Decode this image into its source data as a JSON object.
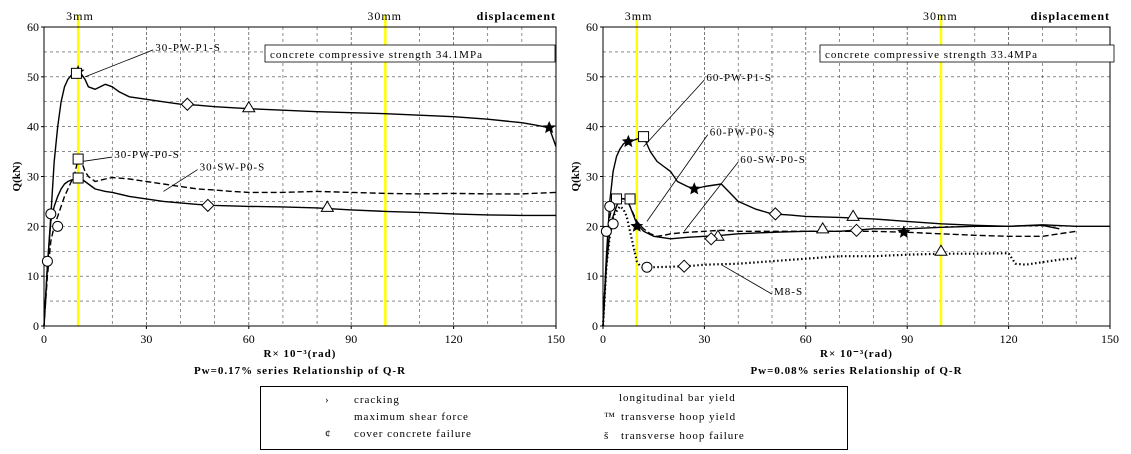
{
  "chart_data": [
    {
      "type": "line",
      "xlabel": "R× 10⁻³(rad)",
      "ylabel": "Q(kN)",
      "xlim": [
        0,
        150
      ],
      "ylim": [
        0,
        60
      ],
      "xticks": [
        "0",
        "30",
        "60",
        "90",
        "120",
        "150"
      ],
      "yticks": [
        "0",
        "10",
        "20",
        "30",
        "40",
        "50",
        "60"
      ],
      "grid": true,
      "top_labels": [
        "3mm",
        "30mm",
        "displacement"
      ],
      "yellow_lines_x": [
        10,
        100
      ],
      "annotation": "concrete compressive strength 34.1MPa",
      "caption": "Pw=0.17% series Relationship of Q-R",
      "series": [
        {
          "name": "30-PW-P1-S",
          "style": "solid",
          "x": [
            0,
            1,
            2,
            3,
            4,
            5,
            6,
            7,
            8,
            9,
            10,
            11,
            12,
            13,
            15,
            18,
            20,
            22,
            25,
            30,
            35,
            40,
            45,
            50,
            55,
            60,
            70,
            80,
            90,
            100,
            110,
            120,
            130,
            140,
            145,
            148,
            150
          ],
          "y": [
            0,
            12,
            22,
            33,
            40,
            45,
            48,
            49.5,
            50.3,
            50.7,
            51,
            50.5,
            49.5,
            48,
            47.5,
            48.5,
            48,
            47,
            46,
            45.5,
            45,
            44.5,
            44.3,
            44,
            43.8,
            43.6,
            43.3,
            43,
            42.8,
            42.6,
            42.3,
            42,
            41.5,
            40.8,
            40.2,
            39.8,
            36
          ]
        },
        {
          "name": "30-PW-P0-S",
          "style": "dashed",
          "x": [
            0,
            1,
            2,
            3,
            4,
            5,
            6,
            7,
            8,
            9,
            10,
            11,
            12,
            13,
            14,
            15,
            18,
            20,
            25,
            30,
            35,
            40,
            45,
            50,
            55,
            60,
            70,
            80,
            90,
            100,
            110,
            120,
            130,
            140,
            150
          ],
          "y": [
            0,
            10,
            17,
            20,
            22,
            24,
            26,
            27.5,
            29,
            30.5,
            33.5,
            33,
            31,
            30,
            29.5,
            29,
            29.5,
            29.8,
            29.5,
            29,
            28.5,
            28,
            27.5,
            27.3,
            27,
            26.8,
            26.8,
            27,
            26.8,
            26.6,
            26.5,
            26.6,
            26.5,
            26.5,
            26.8
          ]
        },
        {
          "name": "30-SW-P0-S",
          "style": "solid",
          "x": [
            0,
            1,
            2,
            3,
            4,
            5,
            6,
            7,
            8,
            9,
            10,
            11,
            12,
            13,
            15,
            18,
            20,
            25,
            30,
            35,
            40,
            45,
            50,
            55,
            60,
            70,
            80,
            90,
            100,
            110,
            120,
            130,
            140,
            150
          ],
          "y": [
            0,
            12,
            21,
            24,
            26,
            27.5,
            28.5,
            29,
            29.3,
            29.5,
            29.7,
            29.5,
            29,
            28.5,
            27.5,
            27,
            26.8,
            26,
            25.5,
            25,
            24.7,
            24.4,
            24.2,
            24.1,
            24,
            23.9,
            23.7,
            23.3,
            23,
            22.8,
            22.5,
            22.3,
            22.2,
            22.2
          ]
        }
      ],
      "markers": [
        {
          "series": "30-PW-P1-S",
          "symbol": "star",
          "x": 10,
          "y": 51
        },
        {
          "series": "30-PW-P1-S",
          "symbol": "square",
          "x": 9.5,
          "y": 50.7
        },
        {
          "series": "30-PW-P1-S",
          "symbol": "diamond",
          "x": 42,
          "y": 44.5
        },
        {
          "series": "30-PW-P1-S",
          "symbol": "triangle",
          "x": 60,
          "y": 43.8
        },
        {
          "series": "30-PW-P1-S",
          "symbol": "star",
          "x": 148,
          "y": 39.8
        },
        {
          "series": "30-PW-P0-S",
          "symbol": "square",
          "x": 10,
          "y": 33.5
        },
        {
          "series": "30-SW-P0-S",
          "symbol": "circle",
          "x": 1,
          "y": 13
        },
        {
          "series": "30-SW-P0-S",
          "symbol": "circle",
          "x": 2,
          "y": 22.5
        },
        {
          "series": "30-SW-P0-S",
          "symbol": "circle",
          "x": 4,
          "y": 20
        },
        {
          "series": "30-SW-P0-S",
          "symbol": "square",
          "x": 10,
          "y": 29.7
        },
        {
          "series": "30-SW-P0-S",
          "symbol": "diamond",
          "x": 48,
          "y": 24.2
        },
        {
          "series": "30-SW-P0-S",
          "symbol": "triangle",
          "x": 83,
          "y": 23.8
        }
      ],
      "callouts": [
        {
          "text": "30-PW-P1-S",
          "at_x": 12,
          "at_y": 50,
          "tx": 32,
          "ty": 56
        },
        {
          "text": "30-PW-P0-S",
          "at_x": 11,
          "at_y": 33,
          "tx": 20,
          "ty": 34.5
        },
        {
          "text": "30-SW-P0-S",
          "at_x": 35,
          "at_y": 27,
          "tx": 45,
          "ty": 32
        }
      ]
    },
    {
      "type": "line",
      "xlabel": "R× 10⁻³(rad)",
      "ylabel": "Q(kN)",
      "xlim": [
        0,
        150
      ],
      "ylim": [
        0,
        60
      ],
      "xticks": [
        "0",
        "30",
        "60",
        "90",
        "120",
        "150"
      ],
      "yticks": [
        "0",
        "10",
        "20",
        "30",
        "40",
        "50",
        "60"
      ],
      "grid": true,
      "top_labels": [
        "3mm",
        "30mm",
        "displacement"
      ],
      "yellow_lines_x": [
        10,
        100
      ],
      "annotation": "concrete compressive strength 33.4MPa",
      "caption": "Pw=0.08% series Relationship of Q-R",
      "series": [
        {
          "name": "60-PW-P1-S",
          "style": "solid",
          "x": [
            0,
            1,
            2,
            3,
            4,
            5,
            6,
            7,
            8,
            10,
            12,
            14,
            16,
            18,
            20,
            22,
            25,
            27,
            30,
            35,
            40,
            45,
            50,
            55,
            60,
            70,
            80,
            90,
            100,
            110,
            120,
            130,
            140,
            150
          ],
          "y": [
            0,
            14,
            25,
            31,
            34,
            35.5,
            36.5,
            37,
            37,
            37.5,
            38,
            35,
            33,
            32,
            31,
            29,
            28,
            27.5,
            28,
            28.5,
            25,
            23.5,
            22.5,
            22.3,
            22,
            21.8,
            21.5,
            21,
            20.5,
            20.2,
            20,
            20.3,
            20,
            20
          ]
        },
        {
          "name": "60-PW-P0-S",
          "style": "dashed",
          "x": [
            0,
            1,
            2,
            3,
            4,
            5,
            6,
            7,
            8,
            10,
            12,
            14,
            16,
            18,
            20,
            25,
            30,
            35,
            40,
            50,
            60,
            70,
            80,
            90,
            100,
            110,
            120,
            130,
            140
          ],
          "y": [
            0,
            13,
            22,
            24.5,
            25.5,
            25.8,
            25.5,
            25.5,
            24,
            21,
            19.5,
            18.5,
            18,
            18.2,
            18.5,
            18.8,
            19,
            19.2,
            19,
            19,
            19,
            19,
            19,
            18.8,
            18.5,
            18.2,
            18,
            18,
            19
          ]
        },
        {
          "name": "60-SW-P0-S",
          "style": "solid",
          "x": [
            0,
            1,
            2,
            3,
            4,
            5,
            6,
            7,
            8,
            10,
            12,
            15,
            20,
            25,
            30,
            35,
            40,
            50,
            60,
            70,
            80,
            90,
            100,
            110,
            120,
            130,
            135
          ],
          "y": [
            0,
            12,
            19,
            22,
            24,
            25.5,
            25.5,
            25.5,
            24,
            20.5,
            19,
            18,
            17.5,
            17.8,
            18,
            18.2,
            18.5,
            18.8,
            19,
            19,
            19.5,
            19.5,
            19.8,
            20,
            20,
            20.2,
            19.5
          ]
        },
        {
          "name": "M8-S",
          "style": "dotted",
          "x": [
            0,
            1,
            2,
            3,
            4,
            5,
            6,
            7,
            8,
            9,
            10,
            11,
            12,
            13,
            15,
            20,
            25,
            30,
            40,
            50,
            60,
            70,
            80,
            90,
            100,
            110,
            120,
            122,
            125,
            130,
            135,
            140
          ],
          "y": [
            0,
            12,
            18,
            22,
            23,
            24,
            23.5,
            22,
            19,
            16,
            13,
            12,
            11.8,
            11.7,
            11.8,
            11.9,
            12,
            12.3,
            12.5,
            13,
            13.5,
            14,
            14,
            14.3,
            14.5,
            14.5,
            14.6,
            12.5,
            12.3,
            12.8,
            13.3,
            13.6
          ]
        }
      ],
      "markers": [
        {
          "series": "60-PW-P1-S",
          "symbol": "star",
          "x": 7.5,
          "y": 37
        },
        {
          "series": "60-PW-P1-S",
          "symbol": "square",
          "x": 12,
          "y": 38
        },
        {
          "series": "60-PW-P1-S",
          "symbol": "star",
          "x": 27,
          "y": 27.5
        },
        {
          "series": "60-PW-P1-S",
          "symbol": "diamond",
          "x": 51,
          "y": 22.5
        },
        {
          "series": "60-PW-P1-S",
          "symbol": "triangle",
          "x": 74,
          "y": 22
        },
        {
          "series": "60-PW-P0-S",
          "symbol": "square",
          "x": 4,
          "y": 25.5
        },
        {
          "series": "60-PW-P0-S",
          "symbol": "square",
          "x": 8,
          "y": 25.5
        },
        {
          "series": "60-PW-P0-S",
          "symbol": "star",
          "x": 10,
          "y": 20
        },
        {
          "series": "60-PW-P0-S",
          "symbol": "triangle",
          "x": 34,
          "y": 18
        },
        {
          "series": "60-PW-P0-S",
          "symbol": "triangle",
          "x": 65,
          "y": 19.5
        },
        {
          "series": "60-PW-P0-S",
          "symbol": "star",
          "x": 89,
          "y": 18.8
        },
        {
          "series": "60-SW-P0-S",
          "symbol": "circle",
          "x": 1,
          "y": 19
        },
        {
          "series": "60-SW-P0-S",
          "symbol": "diamond",
          "x": 32,
          "y": 17.5
        },
        {
          "series": "60-SW-P0-S",
          "symbol": "diamond",
          "x": 75,
          "y": 19.2
        },
        {
          "series": "60-SW-P0-S",
          "symbol": "triangle",
          "x": 100,
          "y": 15
        },
        {
          "series": "M8-S",
          "symbol": "circle",
          "x": 2,
          "y": 24
        },
        {
          "series": "M8-S",
          "symbol": "circle",
          "x": 3,
          "y": 20.5
        },
        {
          "series": "M8-S",
          "symbol": "circle",
          "x": 13,
          "y": 11.8
        },
        {
          "series": "M8-S",
          "symbol": "diamond",
          "x": 24,
          "y": 12
        }
      ],
      "callouts": [
        {
          "text": "60-PW-P1-S",
          "at_x": 12,
          "at_y": 36,
          "tx": 30,
          "ty": 50
        },
        {
          "text": "60-PW-P0-S",
          "at_x": 13,
          "at_y": 21,
          "tx": 31,
          "ty": 39
        },
        {
          "text": "60-SW-P0-S",
          "at_x": 24,
          "at_y": 19,
          "tx": 40,
          "ty": 33.5
        },
        {
          "text": "M8-S",
          "at_x": 35,
          "at_y": 12.3,
          "tx": 50,
          "ty": 7
        }
      ]
    }
  ],
  "legend": {
    "items": [
      {
        "glyph": "›",
        "label": "cracking"
      },
      {
        "glyph": "",
        "label": "maximum shear force"
      },
      {
        "glyph": "¢",
        "label": "cover concrete failure"
      },
      {
        "glyph": "",
        "label": "longitudinal bar yield"
      },
      {
        "glyph": "™",
        "label": "transverse hoop yield"
      },
      {
        "glyph": "š",
        "label": "transverse hoop failure"
      }
    ]
  }
}
